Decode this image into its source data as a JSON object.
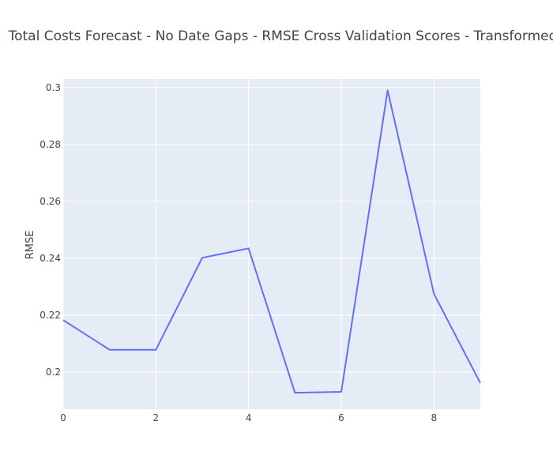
{
  "colors": {
    "plot_bg": "#e5ecf6",
    "grid": "#ffffff",
    "line": "#636efa",
    "text": "#444444"
  },
  "chart_data": {
    "type": "line",
    "title": "Total Costs Forecast - No Date Gaps - RMSE Cross Validation Scores - Transformed",
    "xlabel": "",
    "ylabel": "RMSE",
    "xlim": [
      0,
      9
    ],
    "ylim": [
      0.187,
      0.303
    ],
    "x_ticks": [
      0,
      2,
      4,
      6,
      8
    ],
    "x_tick_labels": [
      "0",
      "2",
      "4",
      "6",
      "8"
    ],
    "y_ticks": [
      0.2,
      0.22,
      0.24,
      0.26,
      0.28,
      0.3
    ],
    "y_tick_labels": [
      "0.2",
      "0.22",
      "0.24",
      "0.26",
      "0.28",
      "0.3"
    ],
    "grid": true,
    "series": [
      {
        "x": [
          0,
          1,
          2,
          3,
          4,
          5,
          6,
          7,
          8,
          9
        ],
        "values": [
          0.2183,
          0.2079,
          0.2079,
          0.2402,
          0.2435,
          0.1928,
          0.1931,
          0.299,
          0.2275,
          0.1962
        ]
      }
    ]
  }
}
